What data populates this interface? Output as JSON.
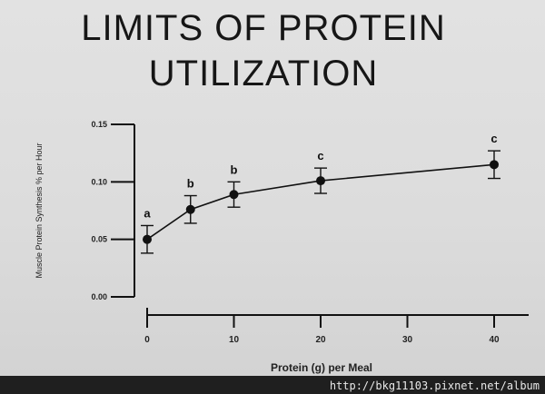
{
  "slide": {
    "title_line1": "LIMITS OF PROTEIN",
    "title_line2": "UTILIZATION"
  },
  "watermark": "http://bkg11103.pixnet.net/album",
  "chart_data": {
    "type": "line",
    "xlabel": "Protein (g) per Meal",
    "ylabel": "Muscle Protein Synthesis % per Hour",
    "xlim": [
      0,
      45
    ],
    "ylim": [
      0,
      0.15
    ],
    "x_ticks": [
      0,
      10,
      20,
      30,
      40
    ],
    "x_tick_labels": [
      "0",
      "10",
      "20",
      "30",
      "40"
    ],
    "y_ticks": [
      0,
      0.05,
      0.1,
      0.15
    ],
    "y_tick_labels": [
      "0.00",
      "0.05",
      "0.10",
      "0.15"
    ],
    "grid": false,
    "series": [
      {
        "x": [
          0,
          5,
          10,
          20,
          40
        ],
        "y": [
          0.05,
          0.076,
          0.089,
          0.101,
          0.115
        ],
        "error": [
          0.012,
          0.012,
          0.011,
          0.011,
          0.012
        ],
        "labels": [
          "a",
          "b",
          "b",
          "c",
          "c"
        ],
        "color": "#111111"
      }
    ]
  }
}
